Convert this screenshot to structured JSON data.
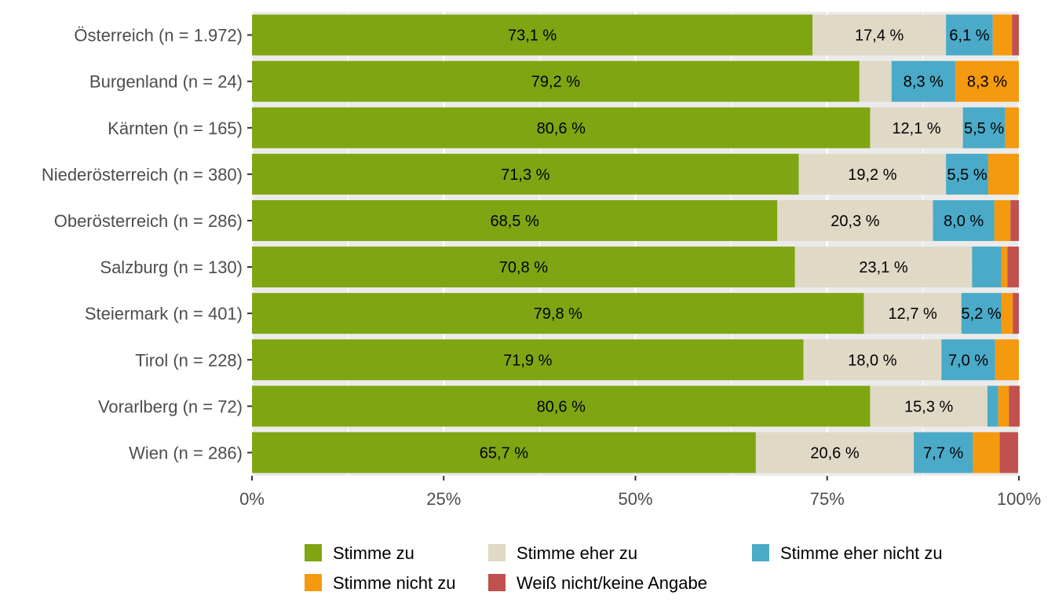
{
  "chart_data": {
    "type": "bar",
    "orientation": "horizontal",
    "stacked": true,
    "categories": [
      "Österreich (n = 1.972)",
      "Burgenland (n = 24)",
      "Kärnten (n = 165)",
      "Niederösterreich (n = 380)",
      "Oberösterreich (n = 286)",
      "Salzburg (n = 130)",
      "Steiermark (n = 401)",
      "Tirol (n = 228)",
      "Vorarlberg (n = 72)",
      "Wien (n = 286)"
    ],
    "series": [
      {
        "name": "Stimme zu",
        "color": "#7fa512",
        "values": [
          73.1,
          79.2,
          80.6,
          71.3,
          68.5,
          70.8,
          79.8,
          71.9,
          80.6,
          65.7
        ]
      },
      {
        "name": "Stimme eher zu",
        "color": "#dfd9c6",
        "values": [
          17.4,
          4.2,
          12.1,
          19.2,
          20.3,
          23.1,
          12.7,
          18.0,
          15.3,
          20.6
        ]
      },
      {
        "name": "Stimme eher nicht zu",
        "color": "#4aaac8",
        "values": [
          6.1,
          8.3,
          5.5,
          5.5,
          8.0,
          3.8,
          5.2,
          7.0,
          1.4,
          7.7
        ]
      },
      {
        "name": "Stimme nicht zu",
        "color": "#f59a0e",
        "values": [
          2.5,
          8.3,
          1.8,
          4.0,
          2.1,
          0.8,
          1.5,
          3.1,
          1.4,
          3.5
        ]
      },
      {
        "name": "Weiß nicht/keine Angabe",
        "color": "#c1514e",
        "values": [
          0.9,
          0.0,
          0.0,
          0.0,
          1.1,
          1.5,
          0.8,
          0.0,
          1.4,
          2.4
        ]
      }
    ],
    "data_labels": [
      [
        "73,1 %",
        "17,4 %",
        "6,1 %",
        "",
        ""
      ],
      [
        "79,2 %",
        "",
        "8,3 %",
        "8,3 %",
        ""
      ],
      [
        "80,6 %",
        "12,1 %",
        "5,5 %",
        "",
        ""
      ],
      [
        "71,3 %",
        "19,2 %",
        "5,5 %",
        "",
        ""
      ],
      [
        "68,5 %",
        "20,3 %",
        "8,0 %",
        "",
        ""
      ],
      [
        "70,8 %",
        "23,1 %",
        "",
        "",
        ""
      ],
      [
        "79,8 %",
        "12,7 %",
        "5,2 %",
        "",
        ""
      ],
      [
        "71,9 %",
        "18,0 %",
        "7,0 %",
        "",
        ""
      ],
      [
        "80,6 %",
        "15,3 %",
        "",
        "",
        ""
      ],
      [
        "65,7 %",
        "20,6 %",
        "7,7 %",
        "",
        ""
      ]
    ],
    "x_ticks": [
      0,
      25,
      50,
      75,
      100
    ],
    "x_tick_labels": [
      "0%",
      "25%",
      "50%",
      "75%",
      "100%"
    ],
    "xlim": [
      0,
      100
    ],
    "title": "",
    "xlabel": "",
    "ylabel": "",
    "grid": true,
    "legend_position": "bottom",
    "background": "#ebebeb"
  }
}
